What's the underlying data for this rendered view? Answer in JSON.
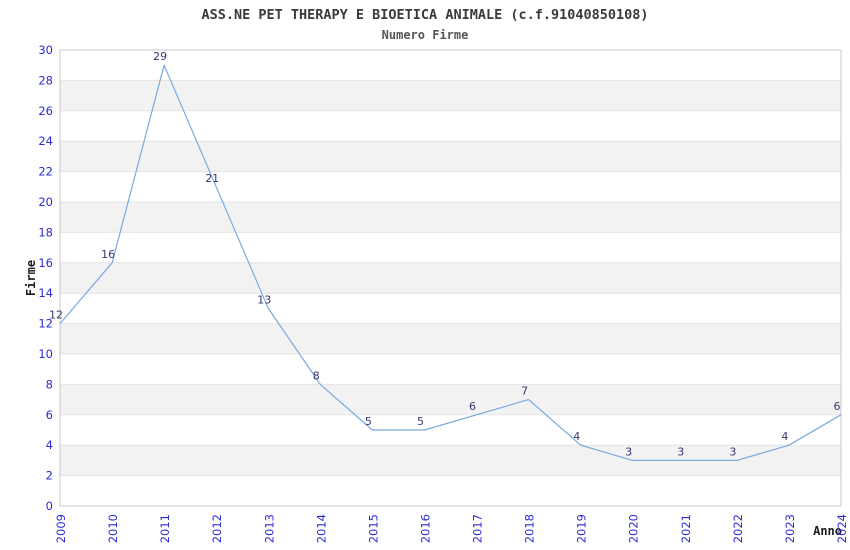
{
  "chart_data": {
    "type": "line",
    "title": "ASS.NE PET THERAPY E BIOETICA ANIMALE (c.f.91040850108)",
    "subtitle": "Numero Firme",
    "xlabel": "Anno",
    "ylabel": "Firme",
    "categories": [
      "2009",
      "2010",
      "2011",
      "2012",
      "2013",
      "2014",
      "2015",
      "2016",
      "2017",
      "2018",
      "2019",
      "2020",
      "2021",
      "2022",
      "2023",
      "2024"
    ],
    "values": [
      12,
      16,
      29,
      21,
      13,
      8,
      5,
      5,
      6,
      7,
      4,
      3,
      3,
      3,
      4,
      6
    ],
    "ylim": [
      0,
      30
    ],
    "ytick_step": 2,
    "legend": "none",
    "grid": "horizontal-bands-every-2-units",
    "data_labels": true,
    "colors": {
      "line": "#79aadf",
      "tick_label": "#2b2bd5",
      "data_label": "#373770",
      "band_fill": "#f2f2f2",
      "gridline": "#e4e4e4",
      "plot_border": "#c8c8c8",
      "title": "#3a3a3a",
      "subtitle": "#565656",
      "axis_title": "#1c1c1c",
      "background": "#ffffff"
    }
  }
}
